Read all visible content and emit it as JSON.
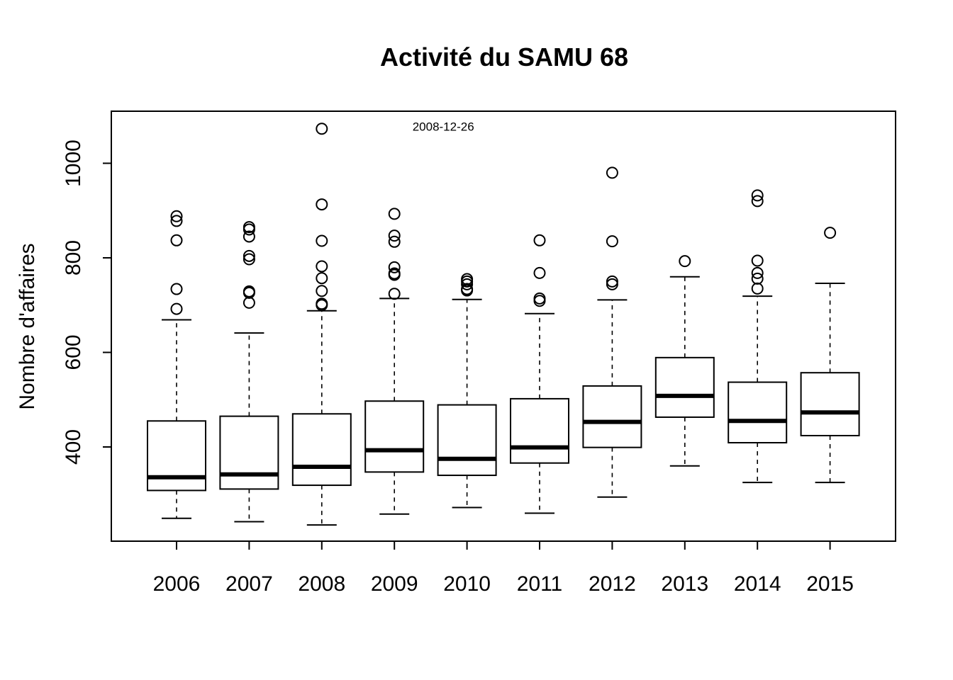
{
  "chart_data": {
    "type": "boxplot",
    "title": "Activité du SAMU 68",
    "xlabel": "",
    "ylabel": "Nombre d'affaires",
    "ylim": [
      220,
      1110
    ],
    "yticks": [
      400,
      600,
      800,
      1000
    ],
    "grid": false,
    "annotation": {
      "text": "2008-12-26",
      "x_near": "2009",
      "y": 1078
    },
    "categories": [
      "2006",
      "2007",
      "2008",
      "2009",
      "2010",
      "2011",
      "2012",
      "2013",
      "2014",
      "2015"
    ],
    "boxes": [
      {
        "category": "2006",
        "whisker_low": 249,
        "q1": 308,
        "median": 336,
        "q3": 455,
        "whisker_high": 669,
        "outliers": [
          692,
          734,
          837,
          878,
          888
        ]
      },
      {
        "category": "2007",
        "whisker_low": 242,
        "q1": 311,
        "median": 342,
        "q3": 465,
        "whisker_high": 641,
        "outliers": [
          705,
          726,
          729,
          797,
          804,
          845,
          860,
          865
        ]
      },
      {
        "category": "2008",
        "whisker_low": 235,
        "q1": 319,
        "median": 358,
        "q3": 470,
        "whisker_high": 688,
        "outliers": [
          700,
          703,
          730,
          757,
          782,
          836,
          913,
          1073
        ]
      },
      {
        "category": "2009",
        "whisker_low": 258,
        "q1": 347,
        "median": 393,
        "q3": 497,
        "whisker_high": 714,
        "outliers": [
          724,
          764,
          767,
          780,
          834,
          847,
          893
        ]
      },
      {
        "category": "2010",
        "whisker_low": 272,
        "q1": 340,
        "median": 375,
        "q3": 489,
        "whisker_high": 712,
        "outliers": [
          731,
          734,
          744,
          750,
          755
        ]
      },
      {
        "category": "2011",
        "whisker_low": 260,
        "q1": 366,
        "median": 399,
        "q3": 502,
        "whisker_high": 682,
        "outliers": [
          709,
          714,
          768,
          837
        ]
      },
      {
        "category": "2012",
        "whisker_low": 294,
        "q1": 399,
        "median": 453,
        "q3": 529,
        "whisker_high": 711,
        "outliers": [
          744,
          750,
          835,
          980
        ]
      },
      {
        "category": "2013",
        "whisker_low": 360,
        "q1": 463,
        "median": 508,
        "q3": 589,
        "whisker_high": 760,
        "outliers": [
          793
        ]
      },
      {
        "category": "2014",
        "whisker_low": 325,
        "q1": 409,
        "median": 455,
        "q3": 537,
        "whisker_high": 719,
        "outliers": [
          735,
          756,
          768,
          794,
          920,
          932
        ]
      },
      {
        "category": "2015",
        "whisker_low": 325,
        "q1": 424,
        "median": 473,
        "q3": 557,
        "whisker_high": 746,
        "outliers": [
          853
        ]
      }
    ]
  }
}
